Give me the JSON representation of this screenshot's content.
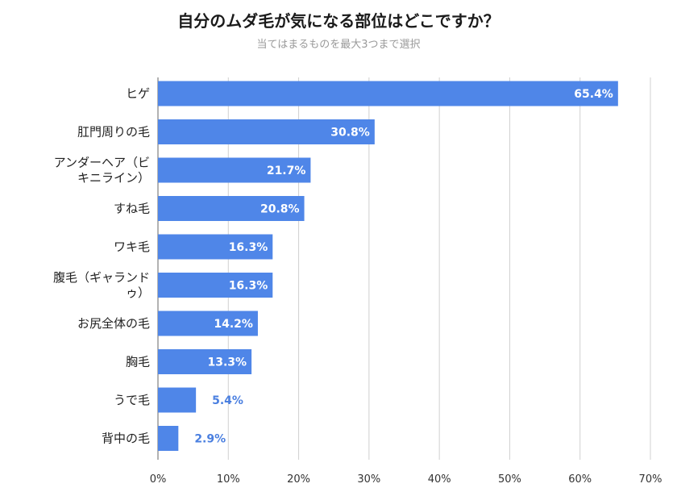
{
  "chart_data": {
    "type": "bar",
    "orientation": "horizontal",
    "title": "自分のムダ毛が気になる部位はどこですか？",
    "subtitle": "当てはまるものを最大3つまで選択",
    "categories": [
      [
        "ヒゲ"
      ],
      [
        "肛門周りの毛"
      ],
      [
        "アンダーヘア（ビ",
        "キニライン）"
      ],
      [
        "すね毛"
      ],
      [
        "ワキ毛"
      ],
      [
        "腹毛（ギャランド",
        "ゥ）"
      ],
      [
        "お尻全体の毛"
      ],
      [
        "胸毛"
      ],
      [
        "うで毛"
      ],
      [
        "背中の毛"
      ]
    ],
    "values": [
      65.4,
      30.8,
      21.7,
      20.8,
      16.3,
      16.3,
      14.2,
      13.3,
      5.4,
      2.9
    ],
    "data_labels": [
      "65.4%",
      "30.8%",
      "21.7%",
      "20.8%",
      "16.3%",
      "16.3%",
      "14.2%",
      "13.3%",
      "5.4%",
      "2.9%"
    ],
    "xlim": [
      0,
      70
    ],
    "xticks": [
      0,
      10,
      20,
      30,
      40,
      50,
      60,
      70
    ],
    "xtick_labels": [
      "0%",
      "10%",
      "20%",
      "30%",
      "40%",
      "50%",
      "60%",
      "70%"
    ],
    "grid": true,
    "bar_color": "#4f86e8",
    "outside_label_color": "#4a7fe0",
    "grid_color": "#d0d0d0"
  }
}
